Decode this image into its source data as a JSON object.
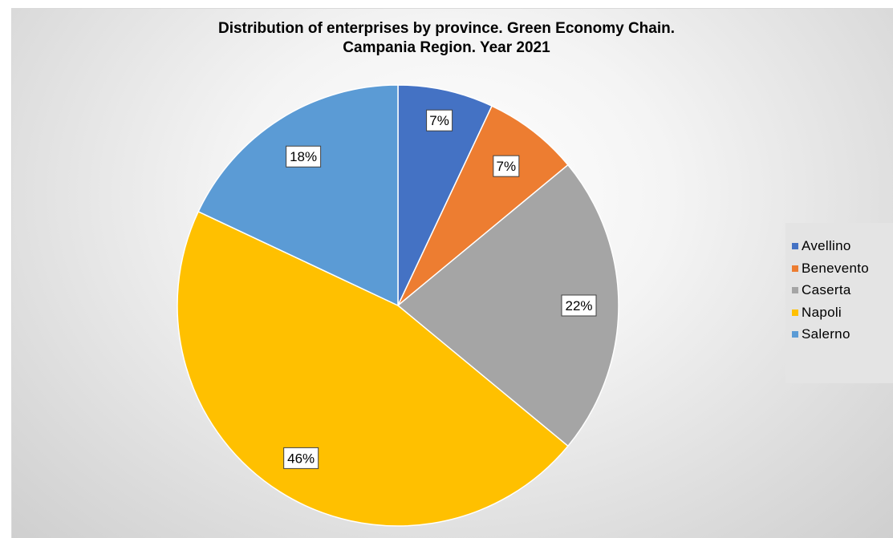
{
  "chart_data": {
    "type": "pie",
    "title_lines": [
      "Distribution of enterprises by province. Green Economy Chain.",
      "Campania Region. Year 2021"
    ],
    "categories": [
      "Avellino",
      "Benevento",
      "Caserta",
      "Napoli",
      "Salerno"
    ],
    "values": [
      7,
      7,
      22,
      46,
      18
    ],
    "data_labels": [
      "7%",
      "7%",
      "22%",
      "46%",
      "18%"
    ],
    "colors": [
      "#4472C4",
      "#ED7D31",
      "#A5A5A5",
      "#FFC000",
      "#5B9BD5"
    ],
    "legend_position": "right",
    "start_angle": "12 o'clock, clockwise"
  }
}
